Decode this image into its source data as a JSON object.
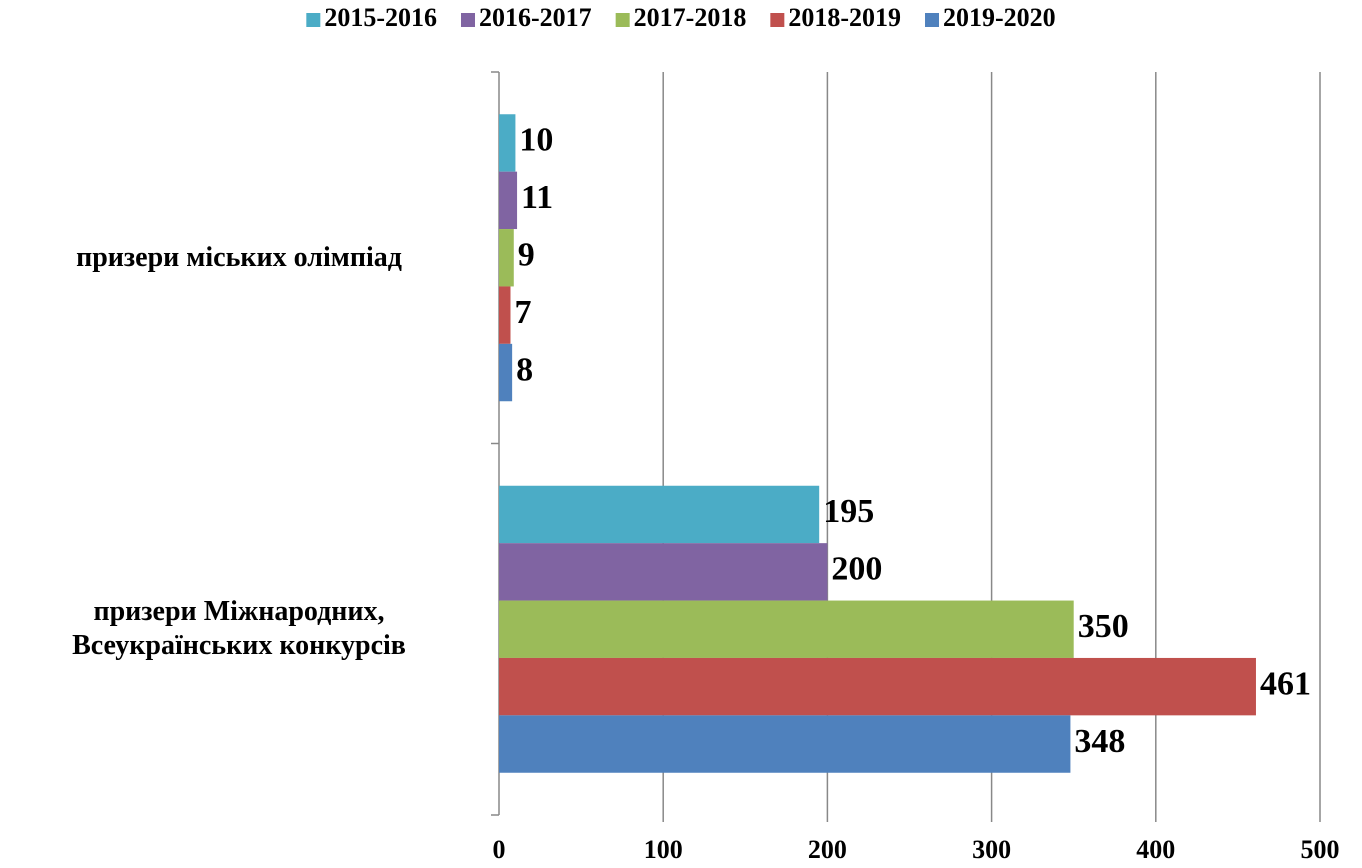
{
  "chart_data": {
    "type": "hbar",
    "categories": [
      "призери міських олімпіад",
      "призери Міжнародних, Всеукраїнських конкурсів"
    ],
    "series": [
      {
        "name": "2015-2016",
        "color": "#4bacc6",
        "values": [
          10,
          195
        ]
      },
      {
        "name": "2016-2017",
        "color": "#8064a2",
        "values": [
          11,
          200
        ]
      },
      {
        "name": "2017-2018",
        "color": "#9bbb59",
        "values": [
          9,
          350
        ]
      },
      {
        "name": "2018-2019",
        "color": "#c0504d",
        "values": [
          7,
          461
        ]
      },
      {
        "name": "2019-2020",
        "color": "#4f81bd",
        "values": [
          8,
          348
        ]
      }
    ],
    "xlim": [
      0,
      500
    ],
    "xticks": [
      0,
      100,
      200,
      300,
      400,
      500
    ],
    "grid": true,
    "legend": "top"
  }
}
